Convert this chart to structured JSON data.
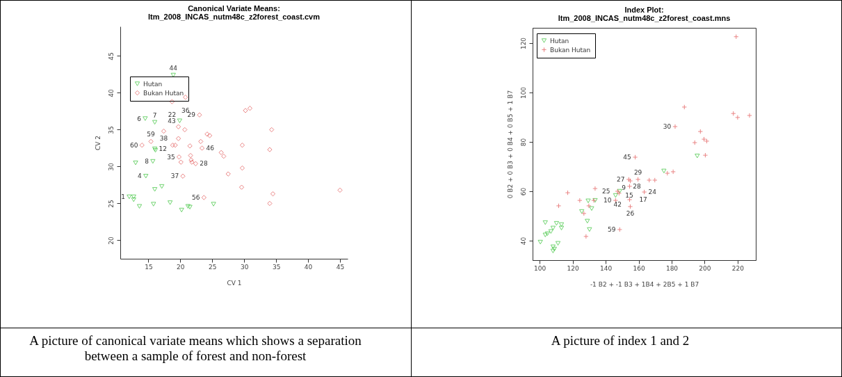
{
  "chart_data": [
    {
      "type": "scatter",
      "title": "Canonical Variate Means:",
      "subtitle": "ltm_2008_INCAS_nutm48c_z2forest_coast.cvm",
      "xlabel": "CV 1",
      "ylabel": "CV 2",
      "xlim": [
        10.6,
        46.2
      ],
      "ylim": [
        17.5,
        49
      ],
      "xticks": [
        15,
        20,
        25,
        30,
        35,
        40,
        45
      ],
      "yticks": [
        20,
        25,
        30,
        35,
        40,
        45
      ],
      "grid": false,
      "legend": "top left",
      "series": [
        {
          "name": "Hutan",
          "color": "#33c033",
          "marker": "triangle",
          "x": [
            14.5,
            16.0,
            13.0,
            15.7,
            16.0,
            16.1,
            14.6,
            16.0,
            17.1,
            12.0,
            12.7,
            12.7,
            13.6,
            15.8,
            18.4,
            20.2,
            21.2,
            21.5,
            25.2,
            19.9,
            18.9
          ],
          "values": [
            36.5,
            36.0,
            30.5,
            30.7,
            32.4,
            32.2,
            28.7,
            26.9,
            27.3,
            25.9,
            25.9,
            25.5,
            24.6,
            24.9,
            25.1,
            24.1,
            24.6,
            24.5,
            24.9,
            36.2,
            42.4
          ]
        },
        {
          "name": "Bukan Hutan",
          "color": "#e05050",
          "marker": "diamond",
          "x": [
            14.0,
            15.4,
            17.4,
            19.7,
            20.7,
            19.7,
            18.8,
            19.2,
            19.8,
            20.1,
            20.4,
            21.5,
            21.6,
            21.7,
            21.8,
            22.4,
            23.2,
            23.4,
            23.0,
            24.2,
            24.6,
            26.4,
            26.8,
            27.5,
            23.7,
            20.8,
            18.7,
            30.2,
            30.9,
            34.3,
            29.7,
            34.0,
            29.7,
            29.6,
            34.5,
            34.0,
            45.0
          ],
          "values": [
            32.9,
            33.4,
            34.8,
            35.4,
            35.0,
            33.8,
            32.9,
            32.9,
            31.3,
            30.6,
            28.7,
            32.8,
            31.5,
            30.9,
            30.6,
            30.4,
            33.4,
            32.5,
            37.0,
            34.4,
            34.2,
            31.9,
            31.4,
            29.0,
            25.8,
            39.4,
            38.8,
            37.6,
            37.9,
            35.0,
            32.9,
            32.3,
            29.8,
            27.2,
            26.3,
            25.0,
            26.8
          ]
        }
      ],
      "annotations": [
        {
          "text": "6",
          "x": 14.5,
          "y": 36.5
        },
        {
          "text": "7",
          "x": 16.0,
          "y": 36.0
        },
        {
          "text": "43",
          "x": 19.7,
          "y": 35.4
        },
        {
          "text": "59",
          "x": 15.4,
          "y": 33.4
        },
        {
          "text": "12",
          "x": 16.0,
          "y": 32.4
        },
        {
          "text": "38",
          "x": 17.4,
          "y": 34.8
        },
        {
          "text": "60",
          "x": 14.0,
          "y": 32.9
        },
        {
          "text": "35",
          "x": 19.8,
          "y": 31.3
        },
        {
          "text": "46",
          "x": 23.4,
          "y": 32.5
        },
        {
          "text": "8",
          "x": 15.7,
          "y": 30.7
        },
        {
          "text": "4",
          "x": 14.6,
          "y": 28.7
        },
        {
          "text": "28",
          "x": 22.4,
          "y": 30.4
        },
        {
          "text": "37",
          "x": 20.4,
          "y": 28.7
        },
        {
          "text": "1",
          "x": 12.0,
          "y": 25.9
        },
        {
          "text": "56",
          "x": 23.7,
          "y": 25.8
        },
        {
          "text": "29",
          "x": 23.0,
          "y": 37.0
        },
        {
          "text": "36",
          "x": 20.8,
          "y": 39.4
        },
        {
          "text": "22",
          "x": 18.7,
          "y": 38.8
        },
        {
          "text": "44",
          "x": 18.9,
          "y": 42.4
        },
        "A picture of canonical variate means which shows a separation between a sample of forest and non-forest"
      ]
    },
    {
      "type": "scatter",
      "title": "Index Plot:",
      "subtitle": "ltm_2008_INCAS_nutm48c_z2forest_coast.mns",
      "xlabel": "-1 B2 + -1 B3 + 1B4 + 2B5 + 1 B7",
      "ylabel": "0 B2 + 0 B3 + 0 B4 + 0 B5 + 1 B7",
      "xlim": [
        95.7,
        231
      ],
      "ylim": [
        32.1,
        126.2
      ],
      "xticks": [
        100,
        120,
        140,
        160,
        180,
        200,
        220
      ],
      "yticks": [
        40,
        60,
        80,
        100,
        120
      ],
      "grid": false,
      "legend": "top left",
      "series": [
        {
          "name": "Hutan",
          "color": "#33c033",
          "marker": "triangle",
          "x": [
            100.4,
            103.4,
            103.4,
            104.7,
            106.8,
            108.1,
            110.2,
            113.2,
            113.2,
            108.1,
            108.9,
            108.1,
            111.1,
            125.5,
            129.4,
            131.5,
            128.9,
            130.2,
            133.6,
            146.0,
            148.5,
            175.3,
            195.5
          ],
          "values": [
            39.4,
            47.3,
            42.3,
            42.8,
            43.7,
            45.1,
            47.0,
            46.5,
            45.1,
            37.5,
            36.6,
            35.8,
            38.9,
            51.8,
            56.1,
            53.0,
            47.9,
            44.5,
            56.3,
            58.3,
            60.0,
            68.2,
            74.3
          ]
        },
        {
          "name": "Bukan Hutan",
          "color": "#e05050",
          "marker": "cross",
          "x": [
            117.0,
            111.5,
            124.3,
            126.8,
            129.8,
            132.8,
            133.6,
            128.1,
            148.5,
            157.9,
            154.0,
            154.9,
            159.6,
            166.4,
            169.8,
            177.4,
            180.9,
            154.5,
            163.4,
            147.2,
            148.1,
            154.5,
            154.9,
            146.0,
            187.7,
            182.1,
            197.4,
            194.0,
            199.6,
            201.3,
            200.4,
            219.1,
            217.4,
            220.0,
            227.2
          ],
          "values": [
            59.4,
            54.1,
            56.3,
            51.0,
            54.1,
            56.3,
            61.1,
            41.7,
            44.5,
            73.8,
            64.8,
            64.2,
            64.8,
            64.5,
            64.5,
            67.3,
            67.9,
            62.0,
            59.7,
            60.0,
            59.2,
            56.6,
            53.8,
            56.3,
            94.1,
            86.2,
            84.2,
            79.7,
            81.1,
            80.3,
            74.6,
            122.6,
            91.5,
            89.9,
            90.7
          ]
        }
      ],
      "annotations": [
        {
          "text": "30",
          "x": 182.1,
          "y": 86.2
        },
        {
          "text": "45",
          "x": 157.9,
          "y": 73.8
        },
        {
          "text": "27",
          "x": 154.0,
          "y": 64.8
        },
        {
          "text": "29",
          "x": 159.6,
          "y": 64.8
        },
        {
          "text": "28",
          "x": 154.9,
          "y": 64.2
        },
        {
          "text": "25",
          "x": 148.5,
          "y": 60.0
        },
        {
          "text": "42",
          "x": 147.2,
          "y": 60.0
        },
        {
          "text": "15",
          "x": 146.0,
          "y": 58.3
        },
        {
          "text": "10",
          "x": 146.0,
          "y": 56.3
        },
        {
          "text": "9",
          "x": 148.1,
          "y": 59.2
        },
        {
          "text": "17",
          "x": 154.5,
          "y": 56.6
        },
        {
          "text": "24",
          "x": 163.4,
          "y": 59.7
        },
        {
          "text": "26",
          "x": 154.9,
          "y": 53.8
        },
        {
          "text": "59",
          "x": 148.5,
          "y": 44.5
        },
        "A picture of index 1 and 2"
      ]
    }
  ]
}
